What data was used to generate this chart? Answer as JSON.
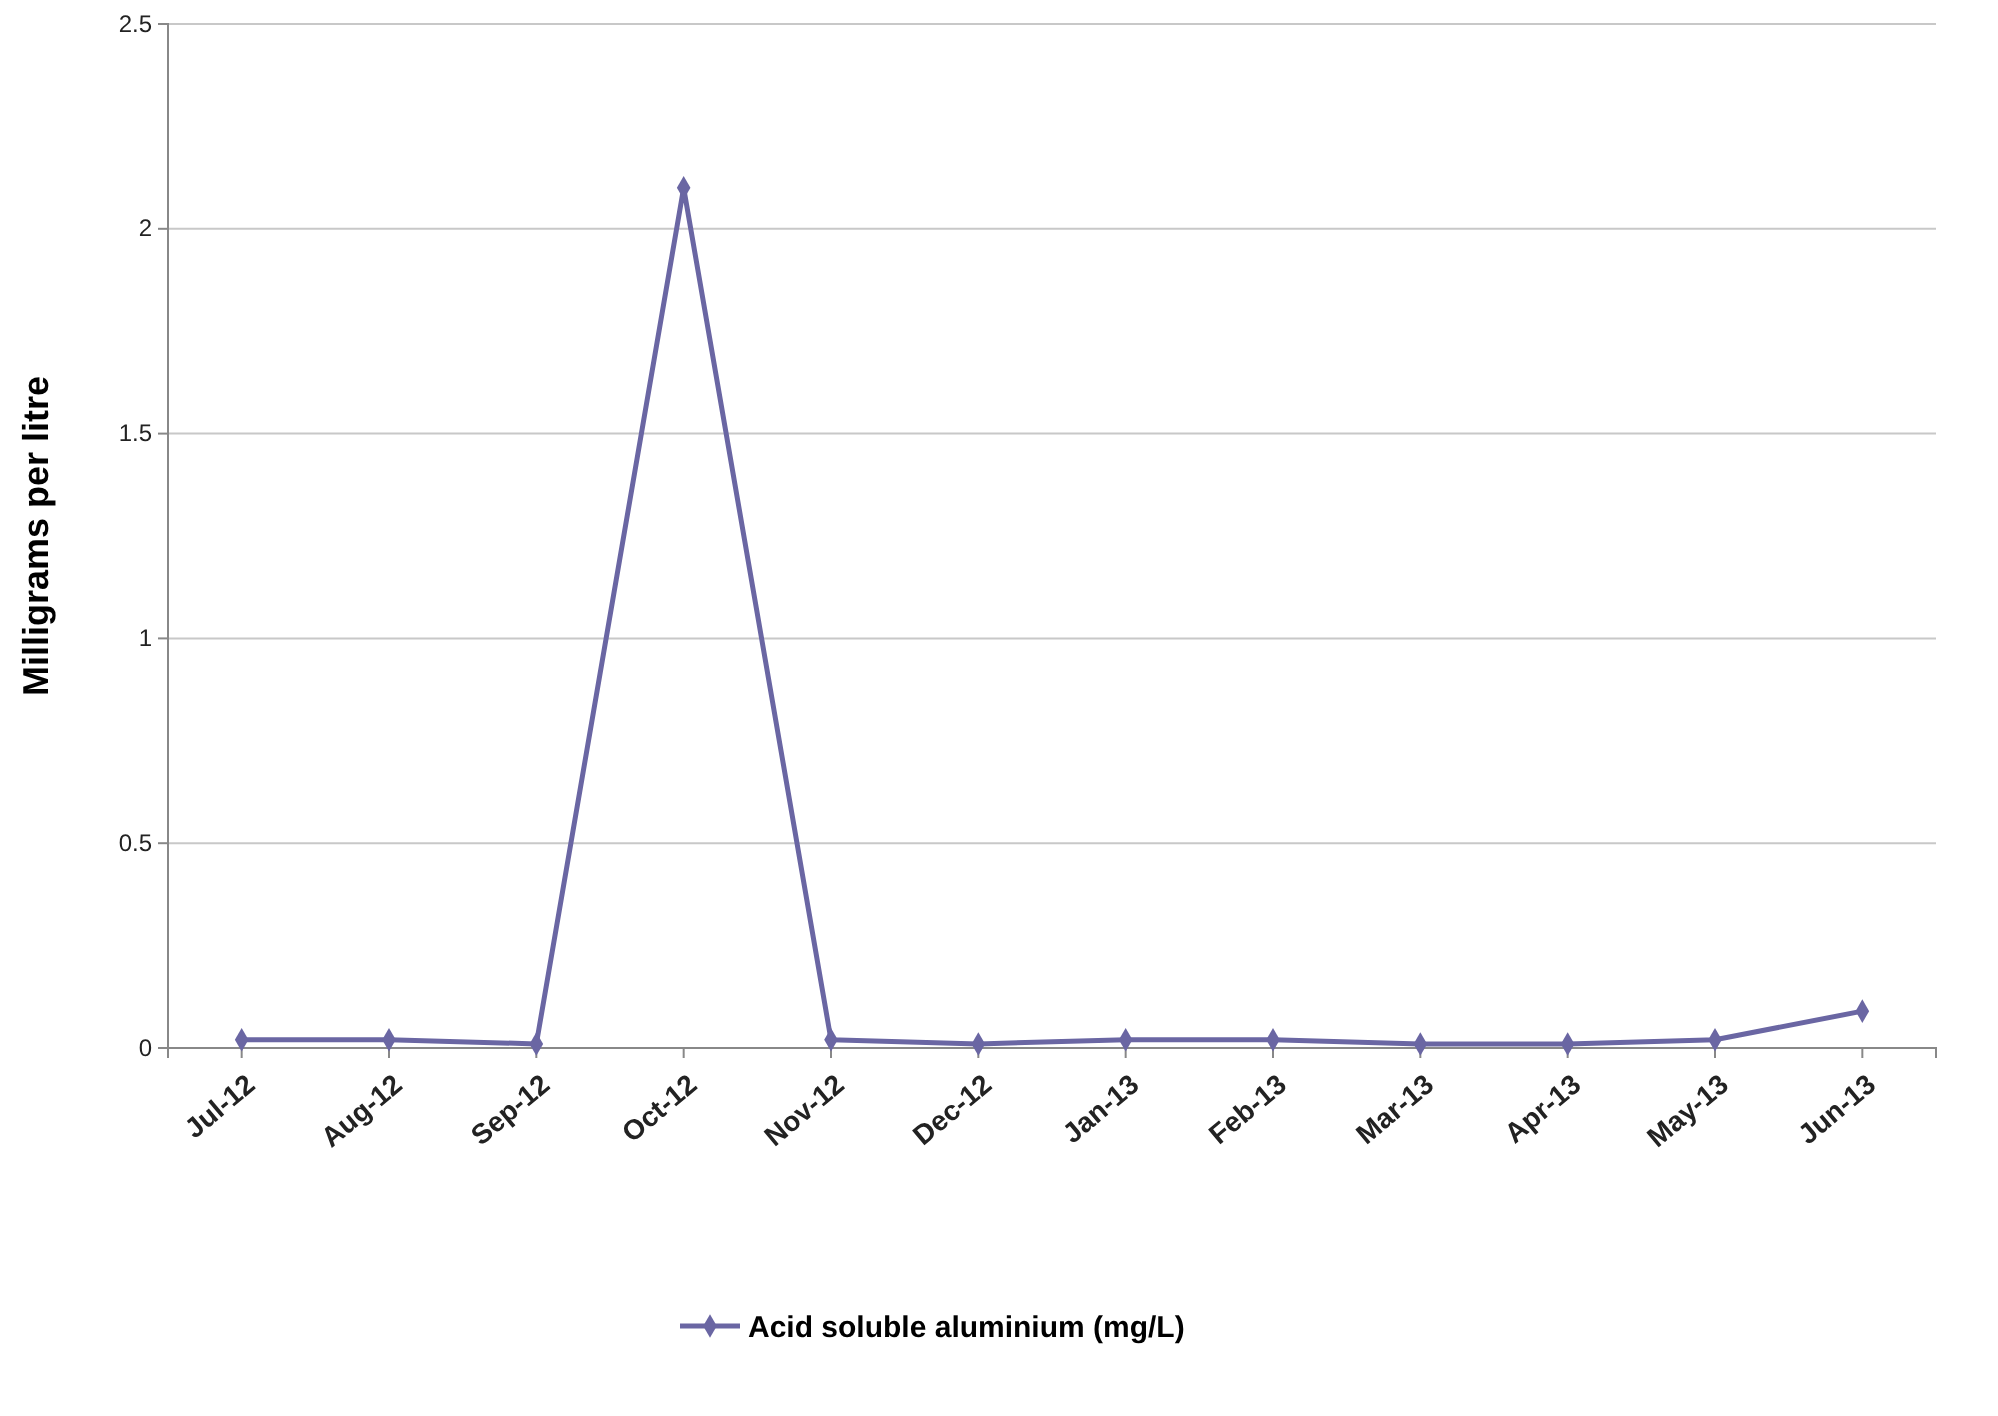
{
  "chart_data": {
    "type": "line",
    "ylabel": "Milligrams per litre",
    "categories": [
      "Jul-12",
      "Aug-12",
      "Sep-12",
      "Oct-12",
      "Nov-12",
      "Dec-12",
      "Jan-13",
      "Feb-13",
      "Mar-13",
      "Apr-13",
      "May-13",
      "Jun-13"
    ],
    "series": [
      {
        "name": "Acid soluble aluminium (mg/L)",
        "color": "#6a66a3",
        "values": [
          0.02,
          0.02,
          0.01,
          2.1,
          0.02,
          0.01,
          0.02,
          0.02,
          0.01,
          0.01,
          0.02,
          0.09
        ]
      }
    ],
    "ylim": [
      0,
      2.5
    ],
    "yticks": [
      0,
      0.5,
      1,
      1.5,
      2,
      2.5
    ],
    "grid": "y",
    "legend": "bottom",
    "marker": "diamond",
    "line_style": "solid"
  }
}
